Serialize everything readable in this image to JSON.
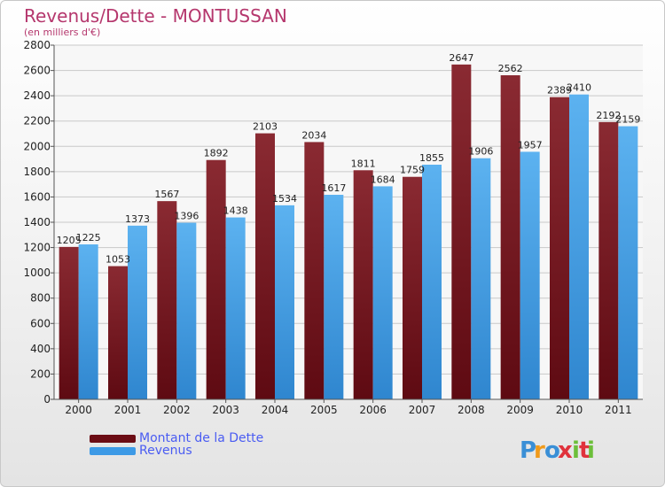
{
  "title": "Revenus/Dette - MONTUSSAN",
  "subtitle": "(en milliers d'€)",
  "colors": {
    "dette": "#7a1e26",
    "revenus": "#4aa6e8",
    "title": "#b5376d",
    "legend_text": "#4a5cf2"
  },
  "legend": {
    "items": [
      {
        "label": "Montant de la Dette",
        "color": "#6b0c14"
      },
      {
        "label": "Revenus",
        "color": "#3d9ae6"
      }
    ]
  },
  "logo": {
    "text": "Proxiti",
    "letters": [
      "P",
      "r",
      "o",
      "x",
      "i",
      "t",
      "i"
    ],
    "colors": [
      "#3a8fd6",
      "#f09a1a",
      "#3a8fd6",
      "#e0323c",
      "#6cbf3a",
      "#e0323c",
      "#6cbf3a"
    ]
  },
  "chart_data": {
    "type": "bar",
    "categories": [
      "2000",
      "2001",
      "2002",
      "2003",
      "2004",
      "2005",
      "2006",
      "2007",
      "2008",
      "2009",
      "2010",
      "2011"
    ],
    "series": [
      {
        "name": "Montant de la Dette",
        "values": [
          1205,
          1053,
          1567,
          1892,
          2103,
          2034,
          1811,
          1759,
          2647,
          2562,
          2389,
          2192
        ]
      },
      {
        "name": "Revenus",
        "values": [
          1225,
          1373,
          1396,
          1438,
          1534,
          1617,
          1684,
          1855,
          1906,
          1957,
          2410,
          2159
        ]
      }
    ],
    "ylim": [
      0,
      2800
    ],
    "yticks": [
      0,
      200,
      400,
      600,
      800,
      1000,
      1200,
      1400,
      1600,
      1800,
      2000,
      2200,
      2400,
      2600,
      2800
    ],
    "grid": true,
    "legend_position": "bottom-left"
  }
}
